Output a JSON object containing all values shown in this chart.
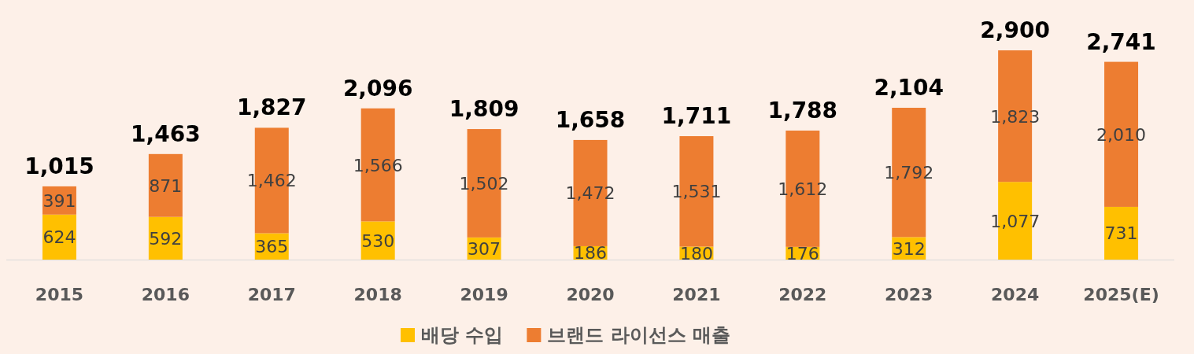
{
  "chart_data": {
    "type": "bar",
    "stacked": true,
    "legend": "bottom",
    "categories": [
      "2015",
      "2016",
      "2017",
      "2018",
      "2019",
      "2020",
      "2021",
      "2022",
      "2023",
      "2024",
      "2025(E)"
    ],
    "series": [
      {
        "name": "배당 수입",
        "color": "#ffc000",
        "values": [
          624,
          592,
          365,
          530,
          307,
          186,
          180,
          176,
          312,
          1077,
          731
        ],
        "value_labels": [
          "624",
          "592",
          "365",
          "530",
          "307",
          "186",
          "180",
          "176",
          "312",
          "1,077",
          "731"
        ]
      },
      {
        "name": "브랜드 라이선스 매출",
        "color": "#ed7d31",
        "values": [
          391,
          871,
          1462,
          1566,
          1502,
          1472,
          1531,
          1612,
          1792,
          1823,
          2010
        ],
        "value_labels": [
          "391",
          "871",
          "1,462",
          "1,566",
          "1,502",
          "1,472",
          "1,531",
          "1,612",
          "1,792",
          "1,823",
          "2,010"
        ]
      }
    ],
    "totals": [
      "1,015",
      "1,463",
      "1,827",
      "2,096",
      "1,809",
      "1,658",
      "1,711",
      "1,788",
      "2,104",
      "2,900",
      "2,741"
    ]
  }
}
